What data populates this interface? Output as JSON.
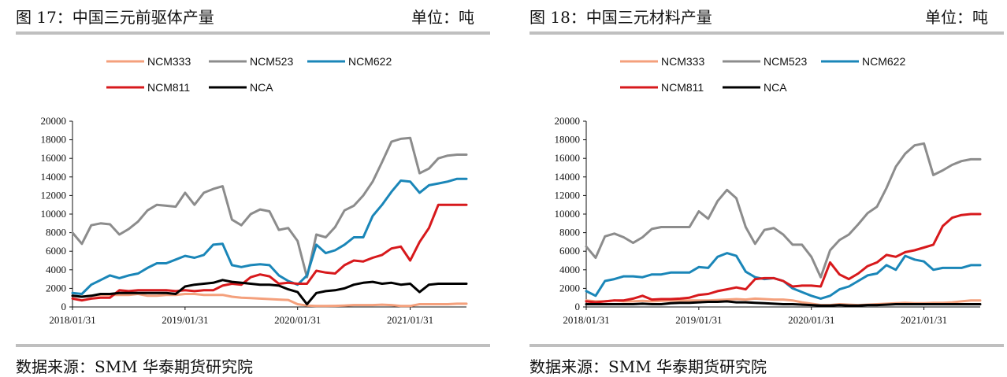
{
  "page": {
    "source_text": "数据来源：SMM 华泰期货研究院"
  },
  "chart_data": [
    {
      "type": "line",
      "title": "图 17：中国三元前驱体产量",
      "unit_label": "单位：吨",
      "ylim": [
        0,
        20000
      ],
      "yticks": [
        "0",
        "2000",
        "4000",
        "6000",
        "8000",
        "10000",
        "12000",
        "14000",
        "16000",
        "18000",
        "20000"
      ],
      "xticks": [
        "2018/01/31",
        "2019/01/31",
        "2020/01/31",
        "2021/01/31"
      ],
      "legend": "top",
      "x": [
        "2018-01",
        "2018-02",
        "2018-03",
        "2018-04",
        "2018-05",
        "2018-06",
        "2018-07",
        "2018-08",
        "2018-09",
        "2018-10",
        "2018-11",
        "2018-12",
        "2019-01",
        "2019-02",
        "2019-03",
        "2019-04",
        "2019-05",
        "2019-06",
        "2019-07",
        "2019-08",
        "2019-09",
        "2019-10",
        "2019-11",
        "2019-12",
        "2020-01",
        "2020-02",
        "2020-03",
        "2020-04",
        "2020-05",
        "2020-06",
        "2020-07",
        "2020-08",
        "2020-09",
        "2020-10",
        "2020-11",
        "2020-12",
        "2021-01",
        "2021-02",
        "2021-03",
        "2021-04",
        "2021-05",
        "2021-06",
        "2021-07"
      ],
      "series": [
        {
          "name": "NCM333",
          "color": "#f4a07c",
          "values": [
            1200,
            1100,
            1200,
            1300,
            1300,
            1300,
            1300,
            1400,
            1200,
            1200,
            1300,
            1300,
            1400,
            1400,
            1300,
            1300,
            1300,
            1100,
            1000,
            950,
            900,
            850,
            800,
            750,
            300,
            150,
            100,
            100,
            120,
            150,
            200,
            200,
            200,
            250,
            200,
            100,
            100,
            300,
            300,
            300,
            300,
            350,
            350
          ]
        },
        {
          "name": "NCM523",
          "color": "#8c8c8c",
          "values": [
            8000,
            6800,
            8800,
            9000,
            8900,
            7800,
            8400,
            9200,
            10400,
            11000,
            10900,
            10800,
            12300,
            11000,
            12300,
            12700,
            13000,
            9400,
            8800,
            10000,
            10500,
            10300,
            8300,
            8500,
            7100,
            3200,
            7800,
            7500,
            8600,
            10400,
            10900,
            12000,
            13500,
            15600,
            17800,
            18100,
            18200,
            14400,
            14900,
            16000,
            16300,
            16400,
            16400
          ]
        },
        {
          "name": "NCM622",
          "color": "#1a86b8",
          "values": [
            1500,
            1400,
            2400,
            2900,
            3400,
            3100,
            3400,
            3600,
            4200,
            4700,
            4700,
            5100,
            5500,
            5300,
            5600,
            6700,
            6800,
            4500,
            4300,
            4500,
            4600,
            4500,
            3400,
            2800,
            2400,
            3400,
            6700,
            5800,
            6100,
            6700,
            7500,
            7500,
            9800,
            11000,
            12400,
            13600,
            13500,
            12300,
            13100,
            13300,
            13500,
            13800,
            13800
          ]
        },
        {
          "name": "NCM811",
          "color": "#d7191c",
          "values": [
            900,
            700,
            900,
            1000,
            1000,
            1800,
            1700,
            1800,
            1800,
            1800,
            1800,
            1700,
            1800,
            1700,
            1800,
            1800,
            2300,
            2500,
            2400,
            3200,
            3500,
            3300,
            2500,
            2600,
            2500,
            2500,
            3900,
            3700,
            3600,
            4500,
            5000,
            4900,
            5300,
            5600,
            6300,
            6500,
            5000,
            7000,
            8500,
            11000,
            11000,
            11000,
            11000
          ]
        },
        {
          "name": "NCA",
          "color": "#000000",
          "values": [
            1200,
            1100,
            1200,
            1400,
            1400,
            1500,
            1500,
            1500,
            1500,
            1500,
            1500,
            1400,
            2200,
            2400,
            2500,
            2600,
            2900,
            2700,
            2600,
            2500,
            2400,
            2400,
            2300,
            1900,
            1600,
            300,
            1500,
            1700,
            1800,
            2000,
            2400,
            2600,
            2700,
            2500,
            2600,
            2400,
            2500,
            1600,
            2400,
            2500,
            2500,
            2500,
            2500
          ]
        }
      ]
    },
    {
      "type": "line",
      "title": "图 18：中国三元材料产量",
      "unit_label": "单位：吨",
      "ylim": [
        0,
        20000
      ],
      "yticks": [
        "0",
        "2000",
        "4000",
        "6000",
        "8000",
        "10000",
        "12000",
        "14000",
        "16000",
        "18000",
        "20000"
      ],
      "xticks": [
        "2018/01/31",
        "2019/01/31",
        "2020/01/31",
        "2021/01/31"
      ],
      "legend": "top",
      "x": [
        "2018-01",
        "2018-02",
        "2018-03",
        "2018-04",
        "2018-05",
        "2018-06",
        "2018-07",
        "2018-08",
        "2018-09",
        "2018-10",
        "2018-11",
        "2018-12",
        "2019-01",
        "2019-02",
        "2019-03",
        "2019-04",
        "2019-05",
        "2019-06",
        "2019-07",
        "2019-08",
        "2019-09",
        "2019-10",
        "2019-11",
        "2019-12",
        "2020-01",
        "2020-02",
        "2020-03",
        "2020-04",
        "2020-05",
        "2020-06",
        "2020-07",
        "2020-08",
        "2020-09",
        "2020-10",
        "2020-11",
        "2020-12",
        "2021-01",
        "2021-02",
        "2021-03",
        "2021-04",
        "2021-05",
        "2021-06",
        "2021-07"
      ],
      "series": [
        {
          "name": "NCM333",
          "color": "#f4a07c",
          "values": [
            700,
            600,
            600,
            700,
            600,
            600,
            650,
            600,
            650,
            700,
            700,
            700,
            700,
            700,
            750,
            800,
            850,
            800,
            900,
            850,
            800,
            800,
            700,
            500,
            350,
            200,
            200,
            300,
            250,
            200,
            250,
            300,
            350,
            400,
            450,
            400,
            400,
            450,
            450,
            500,
            600,
            700,
            700
          ]
        },
        {
          "name": "NCM523",
          "color": "#8c8c8c",
          "values": [
            6500,
            5300,
            7600,
            7900,
            7500,
            6900,
            7500,
            8400,
            8600,
            8600,
            8600,
            8600,
            10300,
            9500,
            11400,
            12600,
            11700,
            8600,
            6800,
            8300,
            8500,
            7800,
            6700,
            6700,
            5400,
            3200,
            6100,
            7200,
            7800,
            8900,
            10100,
            10800,
            12800,
            15100,
            16500,
            17400,
            17600,
            14200,
            14700,
            15300,
            15700,
            15900,
            15900
          ]
        },
        {
          "name": "NCM622",
          "color": "#1a86b8",
          "values": [
            1700,
            1200,
            2800,
            3000,
            3300,
            3300,
            3200,
            3500,
            3500,
            3700,
            3700,
            3700,
            4300,
            4200,
            5400,
            5800,
            5500,
            3800,
            3200,
            3000,
            3100,
            2800,
            2000,
            1600,
            1200,
            900,
            1200,
            1900,
            2200,
            2800,
            3400,
            3600,
            4500,
            4000,
            5500,
            5100,
            4900,
            4000,
            4200,
            4200,
            4200,
            4500,
            4500
          ]
        },
        {
          "name": "NCM811",
          "color": "#d7191c",
          "values": [
            600,
            500,
            600,
            700,
            700,
            900,
            1200,
            800,
            850,
            850,
            900,
            1000,
            1300,
            1400,
            1700,
            1900,
            2100,
            1900,
            3000,
            3100,
            3100,
            2800,
            2200,
            2300,
            2300,
            2200,
            4800,
            3500,
            3000,
            3600,
            4400,
            4800,
            5600,
            5400,
            5900,
            6100,
            6400,
            6700,
            8700,
            9600,
            9900,
            10000,
            10000
          ]
        },
        {
          "name": "NCA",
          "color": "#000000",
          "values": [
            300,
            300,
            300,
            300,
            300,
            300,
            350,
            300,
            300,
            400,
            450,
            450,
            500,
            550,
            550,
            600,
            500,
            500,
            450,
            400,
            350,
            300,
            300,
            250,
            200,
            150,
            150,
            200,
            150,
            150,
            200,
            200,
            250,
            300,
            300,
            300,
            300,
            300,
            300,
            300,
            300,
            300,
            300
          ]
        }
      ]
    }
  ]
}
